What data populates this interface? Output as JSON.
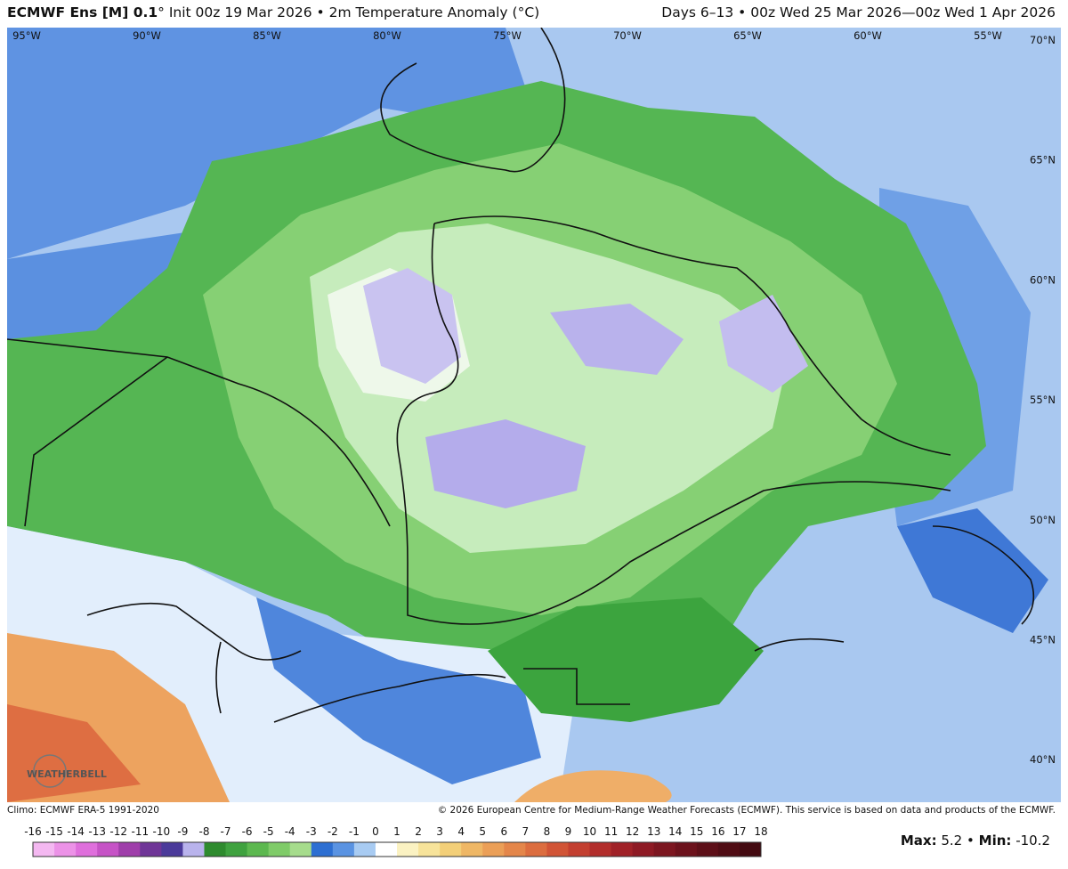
{
  "header": {
    "model": "ECMWF Ens [M] 0.1",
    "title": "° Init 00z 19 Mar 2026 • 2m Temperature Anomaly (°C)",
    "valid": "Days 6–13 • 00z Wed 25 Mar 2026—00z Wed 1 Apr 2026"
  },
  "map": {
    "longitudes": [
      "95°W",
      "90°W",
      "85°W",
      "80°W",
      "75°W",
      "70°W",
      "65°W",
      "60°W",
      "55°W"
    ],
    "latitudes": [
      "70°N",
      "65°N",
      "60°N",
      "55°N",
      "50°N",
      "45°N",
      "40°N"
    ],
    "logo": "WEATHERBELL"
  },
  "footer": {
    "climo": "Climo: ECMWF ERA-5 1991-2020",
    "copyright": "© 2026 European Centre for Medium-Range Weather Forecasts (ECMWF). This service is based on data and products of the ECMWF."
  },
  "colorbar": {
    "ticks": [
      -16,
      -15,
      -14,
      -13,
      -12,
      -11,
      -10,
      -9,
      -8,
      -7,
      -6,
      -5,
      -4,
      -3,
      -2,
      -1,
      0,
      1,
      2,
      3,
      4,
      5,
      6,
      7,
      8,
      9,
      10,
      11,
      12,
      13,
      14,
      15,
      16,
      17,
      18
    ],
    "colors": [
      "#f4b8f1",
      "#ec92e7",
      "#df6fdc",
      "#c653c6",
      "#9f3eaa",
      "#6f3597",
      "#4b3a9a",
      "#b9b3ec",
      "#2e8b2e",
      "#3fa23f",
      "#5cb84f",
      "#7fcb68",
      "#a6dc8c",
      "#2d6fd2",
      "#5a93e2",
      "#a8cbf2",
      "#ffffff",
      "#fbf2c2",
      "#f7e39a",
      "#f3cf78",
      "#efb765",
      "#eb9f57",
      "#e4864a",
      "#dc6d3f",
      "#d15436",
      "#c33f30",
      "#b22d2b",
      "#a02127",
      "#8e1a24",
      "#7c1620",
      "#6c121c",
      "#5d0f18",
      "#500c14",
      "#440a11"
    ]
  },
  "stats": {
    "max_label": "Max:",
    "max": 5.2,
    "separator": "•",
    "min_label": "Min:",
    "min": -10.2
  }
}
